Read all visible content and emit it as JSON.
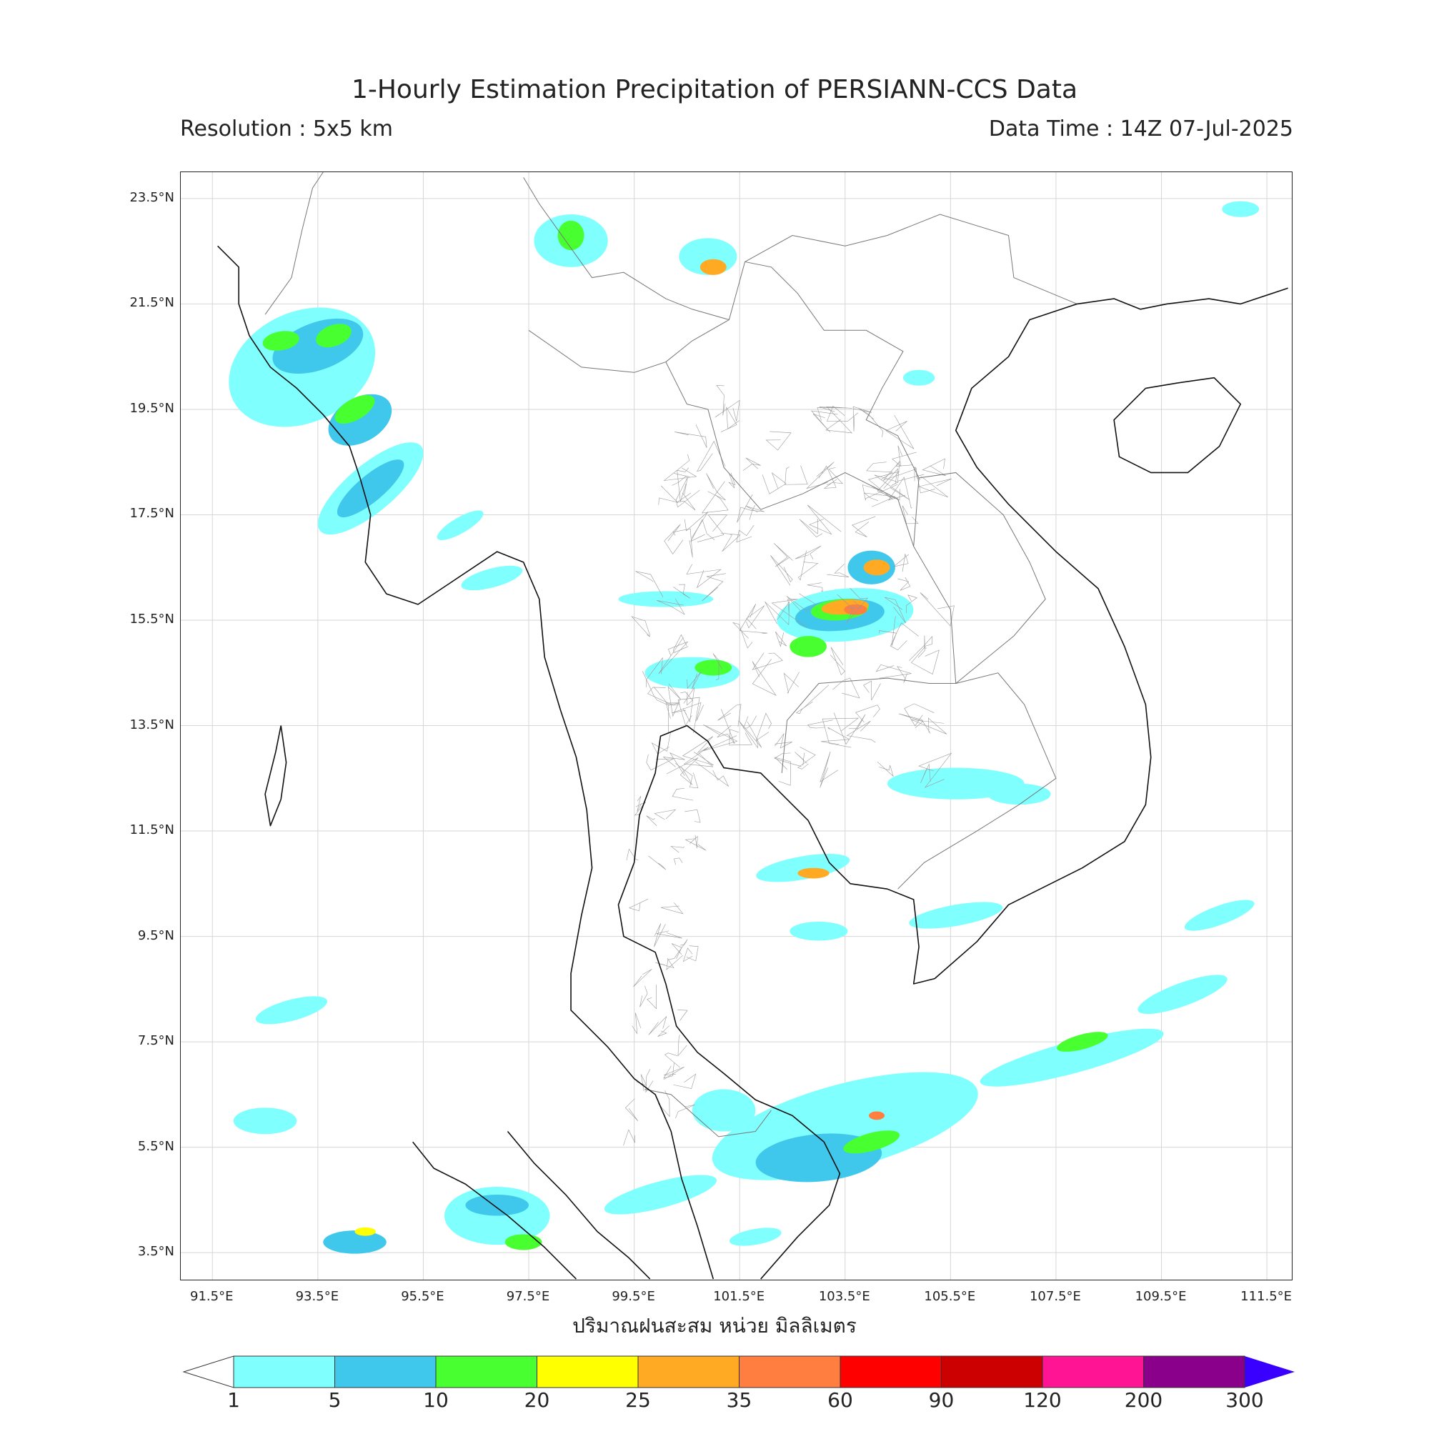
{
  "header": {
    "title": "1-Hourly Estimation Precipitation of PERSIANN-CCS Data",
    "resolution": "Resolution : 5x5 km",
    "data_time": "Data Time : 14Z 07-Jul-2025"
  },
  "axes": {
    "lat_labels": [
      "23.5°N",
      "21.5°N",
      "19.5°N",
      "17.5°N",
      "15.5°N",
      "13.5°N",
      "11.5°N",
      "9.5°N",
      "7.5°N",
      "5.5°N",
      "3.5°N"
    ],
    "lon_labels": [
      "91.5°E",
      "93.5°E",
      "95.5°E",
      "97.5°E",
      "99.5°E",
      "101.5°E",
      "103.5°E",
      "105.5°E",
      "107.5°E",
      "109.5°E",
      "111.5°E"
    ],
    "lat_values": [
      23.5,
      21.5,
      19.5,
      17.5,
      15.5,
      13.5,
      11.5,
      9.5,
      7.5,
      5.5,
      3.5
    ],
    "lon_values": [
      91.5,
      93.5,
      95.5,
      97.5,
      99.5,
      101.5,
      103.5,
      105.5,
      107.5,
      109.5,
      111.5
    ],
    "lat_range": [
      2.96,
      24.0
    ],
    "lon_range": [
      90.9,
      112.0
    ],
    "grid": true
  },
  "unit_label": "ปริมาณฝนสะสม หน่วย มิลลิเมตร",
  "colorbar": {
    "ticks": [
      "1",
      "5",
      "10",
      "20",
      "25",
      "35",
      "60",
      "90",
      "120",
      "200",
      "300"
    ],
    "colors": [
      "#80ffff",
      "#40c8ec",
      "#48ff30",
      "#ffff00",
      "#ffaa22",
      "#ff7e40",
      "#ff0000",
      "#cc0000",
      "#ff1493",
      "#8b008b",
      "#3a00ff"
    ],
    "under_color": "#ffffff"
  },
  "map": {
    "rain_areas": [
      {
        "lon": 93.2,
        "lat": 20.3,
        "rx": 1.45,
        "ry": 1.05,
        "rot": -25,
        "level": 0
      },
      {
        "lon": 93.5,
        "lat": 20.7,
        "rx": 0.9,
        "ry": 0.45,
        "rot": -20,
        "level": 1
      },
      {
        "lon": 93.8,
        "lat": 20.9,
        "rx": 0.35,
        "ry": 0.2,
        "rot": -20,
        "level": 2
      },
      {
        "lon": 92.8,
        "lat": 20.8,
        "rx": 0.35,
        "ry": 0.18,
        "rot": -10,
        "level": 2
      },
      {
        "lon": 94.3,
        "lat": 19.3,
        "rx": 0.65,
        "ry": 0.42,
        "rot": -30,
        "level": 1
      },
      {
        "lon": 94.2,
        "lat": 19.5,
        "rx": 0.42,
        "ry": 0.2,
        "rot": -30,
        "level": 2
      },
      {
        "lon": 94.5,
        "lat": 18.0,
        "rx": 1.25,
        "ry": 0.45,
        "rot": -40,
        "level": 0
      },
      {
        "lon": 94.5,
        "lat": 18.0,
        "rx": 0.8,
        "ry": 0.25,
        "rot": -40,
        "level": 1
      },
      {
        "lon": 98.3,
        "lat": 22.7,
        "rx": 0.7,
        "ry": 0.5,
        "rot": 0,
        "level": 0
      },
      {
        "lon": 98.3,
        "lat": 22.8,
        "rx": 0.25,
        "ry": 0.28,
        "rot": 0,
        "level": 2
      },
      {
        "lon": 100.9,
        "lat": 22.4,
        "rx": 0.55,
        "ry": 0.35,
        "rot": 0,
        "level": 0
      },
      {
        "lon": 101.0,
        "lat": 22.2,
        "rx": 0.25,
        "ry": 0.15,
        "rot": 0,
        "level": 4
      },
      {
        "lon": 103.5,
        "lat": 15.6,
        "rx": 1.3,
        "ry": 0.5,
        "rot": -5,
        "level": 0
      },
      {
        "lon": 103.4,
        "lat": 15.6,
        "rx": 0.85,
        "ry": 0.3,
        "rot": -5,
        "level": 1
      },
      {
        "lon": 103.4,
        "lat": 15.7,
        "rx": 0.55,
        "ry": 0.2,
        "rot": -5,
        "level": 2
      },
      {
        "lon": 103.5,
        "lat": 15.75,
        "rx": 0.45,
        "ry": 0.14,
        "rot": -5,
        "level": 4
      },
      {
        "lon": 103.7,
        "lat": 15.7,
        "rx": 0.22,
        "ry": 0.1,
        "rot": 0,
        "level": 5
      },
      {
        "lon": 102.8,
        "lat": 15.0,
        "rx": 0.35,
        "ry": 0.2,
        "rot": 0,
        "level": 2
      },
      {
        "lon": 104.0,
        "lat": 16.5,
        "rx": 0.45,
        "ry": 0.32,
        "rot": 0,
        "level": 1
      },
      {
        "lon": 104.1,
        "lat": 16.5,
        "rx": 0.25,
        "ry": 0.15,
        "rot": 0,
        "level": 4
      },
      {
        "lon": 100.6,
        "lat": 14.5,
        "rx": 0.9,
        "ry": 0.3,
        "rot": 0,
        "level": 0
      },
      {
        "lon": 101.0,
        "lat": 14.6,
        "rx": 0.35,
        "ry": 0.15,
        "rot": 0,
        "level": 2
      },
      {
        "lon": 100.1,
        "lat": 15.9,
        "rx": 0.9,
        "ry": 0.15,
        "rot": 0,
        "level": 0
      },
      {
        "lon": 105.6,
        "lat": 12.4,
        "rx": 1.3,
        "ry": 0.3,
        "rot": 0,
        "level": 0
      },
      {
        "lon": 106.8,
        "lat": 12.2,
        "rx": 0.6,
        "ry": 0.2,
        "rot": 0,
        "level": 0
      },
      {
        "lon": 105.6,
        "lat": 9.9,
        "rx": 0.9,
        "ry": 0.2,
        "rot": -10,
        "level": 0
      },
      {
        "lon": 102.7,
        "lat": 10.8,
        "rx": 0.9,
        "ry": 0.22,
        "rot": -10,
        "level": 0
      },
      {
        "lon": 102.9,
        "lat": 10.7,
        "rx": 0.3,
        "ry": 0.1,
        "rot": 0,
        "level": 4
      },
      {
        "lon": 103.0,
        "lat": 9.6,
        "rx": 0.55,
        "ry": 0.18,
        "rot": 0,
        "level": 0
      },
      {
        "lon": 103.5,
        "lat": 5.9,
        "rx": 2.6,
        "ry": 0.8,
        "rot": -15,
        "level": 0
      },
      {
        "lon": 103.0,
        "lat": 5.3,
        "rx": 1.2,
        "ry": 0.45,
        "rot": -5,
        "level": 1
      },
      {
        "lon": 104.0,
        "lat": 5.6,
        "rx": 0.55,
        "ry": 0.17,
        "rot": -15,
        "level": 2
      },
      {
        "lon": 104.1,
        "lat": 6.1,
        "rx": 0.15,
        "ry": 0.08,
        "rot": 0,
        "level": 5
      },
      {
        "lon": 107.8,
        "lat": 7.2,
        "rx": 1.8,
        "ry": 0.3,
        "rot": -15,
        "level": 0
      },
      {
        "lon": 108.0,
        "lat": 7.5,
        "rx": 0.5,
        "ry": 0.14,
        "rot": -15,
        "level": 2
      },
      {
        "lon": 109.9,
        "lat": 8.4,
        "rx": 0.9,
        "ry": 0.22,
        "rot": -20,
        "level": 0
      },
      {
        "lon": 110.6,
        "lat": 9.9,
        "rx": 0.7,
        "ry": 0.18,
        "rot": -20,
        "level": 0
      },
      {
        "lon": 100.0,
        "lat": 4.6,
        "rx": 1.1,
        "ry": 0.25,
        "rot": -15,
        "level": 0
      },
      {
        "lon": 96.9,
        "lat": 4.2,
        "rx": 1.0,
        "ry": 0.55,
        "rot": 0,
        "level": 0
      },
      {
        "lon": 96.9,
        "lat": 4.4,
        "rx": 0.6,
        "ry": 0.2,
        "rot": 0,
        "level": 1
      },
      {
        "lon": 97.4,
        "lat": 3.7,
        "rx": 0.35,
        "ry": 0.15,
        "rot": 0,
        "level": 2
      },
      {
        "lon": 94.2,
        "lat": 3.7,
        "rx": 0.6,
        "ry": 0.22,
        "rot": 0,
        "level": 1
      },
      {
        "lon": 94.4,
        "lat": 3.9,
        "rx": 0.2,
        "ry": 0.08,
        "rot": 0,
        "level": 3
      },
      {
        "lon": 93.0,
        "lat": 8.1,
        "rx": 0.7,
        "ry": 0.2,
        "rot": -15,
        "level": 0
      },
      {
        "lon": 92.5,
        "lat": 6.0,
        "rx": 0.6,
        "ry": 0.25,
        "rot": 0,
        "level": 0
      },
      {
        "lon": 96.2,
        "lat": 17.3,
        "rx": 0.5,
        "ry": 0.15,
        "rot": -30,
        "level": 0
      },
      {
        "lon": 96.8,
        "lat": 16.3,
        "rx": 0.6,
        "ry": 0.18,
        "rot": -15,
        "level": 0
      },
      {
        "lon": 111.0,
        "lat": 23.3,
        "rx": 0.35,
        "ry": 0.15,
        "rot": 0,
        "level": 0
      },
      {
        "lon": 104.9,
        "lat": 20.1,
        "rx": 0.3,
        "ry": 0.15,
        "rot": 0,
        "level": 0
      },
      {
        "lon": 101.2,
        "lat": 6.2,
        "rx": 0.6,
        "ry": 0.4,
        "rot": 0,
        "level": 0
      },
      {
        "lon": 101.8,
        "lat": 3.8,
        "rx": 0.5,
        "ry": 0.15,
        "rot": -10,
        "level": 0
      }
    ],
    "coastlines": [
      [
        [
          91.6,
          22.6
        ],
        [
          92.0,
          22.2
        ],
        [
          92.0,
          21.5
        ],
        [
          92.2,
          20.9
        ],
        [
          92.6,
          20.3
        ],
        [
          93.1,
          19.9
        ],
        [
          93.6,
          19.4
        ],
        [
          94.1,
          18.8
        ],
        [
          94.3,
          18.2
        ],
        [
          94.5,
          17.5
        ],
        [
          94.4,
          16.6
        ],
        [
          94.8,
          16.0
        ],
        [
          95.4,
          15.8
        ],
        [
          96.0,
          16.2
        ],
        [
          96.9,
          16.8
        ],
        [
          97.4,
          16.6
        ],
        [
          97.7,
          15.9
        ],
        [
          97.8,
          14.8
        ],
        [
          98.1,
          13.8
        ],
        [
          98.4,
          12.9
        ],
        [
          98.6,
          11.9
        ],
        [
          98.7,
          10.8
        ],
        [
          98.5,
          9.9
        ],
        [
          98.3,
          8.8
        ],
        [
          98.3,
          8.1
        ],
        [
          98.6,
          7.8
        ],
        [
          99.0,
          7.4
        ],
        [
          99.5,
          6.8
        ],
        [
          99.9,
          6.5
        ],
        [
          100.2,
          5.8
        ],
        [
          100.4,
          4.9
        ],
        [
          100.7,
          4.0
        ],
        [
          101.0,
          3.0
        ]
      ],
      [
        [
          101.9,
          3.0
        ],
        [
          102.6,
          3.8
        ],
        [
          103.2,
          4.4
        ],
        [
          103.4,
          5.0
        ],
        [
          103.1,
          5.6
        ],
        [
          102.5,
          6.1
        ],
        [
          101.8,
          6.4
        ],
        [
          101.2,
          6.9
        ],
        [
          100.7,
          7.3
        ],
        [
          100.3,
          7.8
        ],
        [
          100.1,
          8.6
        ],
        [
          99.9,
          9.2
        ],
        [
          99.3,
          9.5
        ],
        [
          99.2,
          10.1
        ],
        [
          99.5,
          10.9
        ],
        [
          99.6,
          11.8
        ],
        [
          99.9,
          12.6
        ],
        [
          100.0,
          13.3
        ],
        [
          100.5,
          13.5
        ],
        [
          100.9,
          13.2
        ],
        [
          101.2,
          12.7
        ],
        [
          101.9,
          12.6
        ],
        [
          102.4,
          12.1
        ],
        [
          102.8,
          11.7
        ],
        [
          103.2,
          10.9
        ],
        [
          103.6,
          10.5
        ],
        [
          104.3,
          10.4
        ],
        [
          104.8,
          10.2
        ],
        [
          104.9,
          9.3
        ],
        [
          104.8,
          8.6
        ],
        [
          105.2,
          8.7
        ],
        [
          106.0,
          9.4
        ],
        [
          106.6,
          10.1
        ],
        [
          107.2,
          10.4
        ],
        [
          108.0,
          10.8
        ],
        [
          108.8,
          11.3
        ],
        [
          109.2,
          12.0
        ],
        [
          109.3,
          12.9
        ],
        [
          109.2,
          13.9
        ],
        [
          108.8,
          15.0
        ],
        [
          108.3,
          16.1
        ],
        [
          107.5,
          16.8
        ],
        [
          106.6,
          17.7
        ],
        [
          106.0,
          18.4
        ],
        [
          105.6,
          19.1
        ],
        [
          105.9,
          19.9
        ],
        [
          106.6,
          20.5
        ],
        [
          107.0,
          21.2
        ],
        [
          107.9,
          21.5
        ],
        [
          108.6,
          21.6
        ],
        [
          109.1,
          21.4
        ],
        [
          109.6,
          21.5
        ],
        [
          110.4,
          21.6
        ],
        [
          111.0,
          21.5
        ],
        [
          111.9,
          21.8
        ]
      ],
      [
        [
          97.1,
          5.8
        ],
        [
          97.6,
          5.2
        ],
        [
          98.2,
          4.6
        ],
        [
          98.8,
          3.9
        ],
        [
          99.4,
          3.4
        ],
        [
          99.8,
          3.0
        ]
      ],
      [
        [
          95.3,
          5.6
        ],
        [
          95.7,
          5.1
        ],
        [
          96.3,
          4.8
        ],
        [
          97.1,
          4.2
        ],
        [
          97.8,
          3.6
        ],
        [
          98.4,
          3.0
        ]
      ],
      [
        [
          109.2,
          19.9
        ],
        [
          109.8,
          20.0
        ],
        [
          110.5,
          20.1
        ],
        [
          111.0,
          19.6
        ],
        [
          110.6,
          18.8
        ],
        [
          110.0,
          18.3
        ],
        [
          109.3,
          18.3
        ],
        [
          108.7,
          18.6
        ],
        [
          108.6,
          19.3
        ],
        [
          109.2,
          19.9
        ]
      ],
      [
        [
          92.8,
          13.5
        ],
        [
          92.9,
          12.8
        ],
        [
          92.8,
          12.1
        ],
        [
          92.6,
          11.6
        ],
        [
          92.5,
          12.2
        ],
        [
          92.7,
          13.0
        ],
        [
          92.8,
          13.5
        ]
      ]
    ],
    "borders": [
      [
        [
          97.5,
          21.0
        ],
        [
          98.5,
          20.3
        ],
        [
          99.5,
          20.2
        ],
        [
          100.1,
          20.4
        ],
        [
          100.5,
          19.6
        ],
        [
          100.9,
          19.5
        ],
        [
          101.2,
          18.4
        ],
        [
          101.9,
          17.6
        ],
        [
          102.7,
          17.9
        ],
        [
          103.5,
          18.3
        ],
        [
          104.5,
          17.8
        ],
        [
          104.8,
          16.9
        ],
        [
          105.5,
          15.7
        ],
        [
          105.6,
          14.3
        ],
        [
          105.1,
          14.3
        ],
        [
          104.3,
          14.4
        ],
        [
          103.0,
          14.3
        ],
        [
          102.4,
          13.6
        ],
        [
          102.3,
          12.6
        ]
      ],
      [
        [
          104.8,
          16.9
        ],
        [
          104.9,
          18.2
        ],
        [
          104.5,
          19.0
        ],
        [
          103.9,
          19.3
        ],
        [
          104.2,
          19.9
        ],
        [
          104.6,
          20.6
        ],
        [
          103.9,
          21.0
        ],
        [
          103.1,
          21.0
        ],
        [
          102.6,
          21.7
        ],
        [
          102.1,
          22.2
        ],
        [
          101.6,
          22.3
        ],
        [
          101.3,
          21.2
        ],
        [
          100.6,
          20.8
        ],
        [
          100.1,
          20.4
        ]
      ],
      [
        [
          105.6,
          14.3
        ],
        [
          106.4,
          14.5
        ],
        [
          106.9,
          13.9
        ],
        [
          107.5,
          12.5
        ],
        [
          106.8,
          12.0
        ],
        [
          106.0,
          11.5
        ],
        [
          105.0,
          10.9
        ],
        [
          104.5,
          10.4
        ]
      ],
      [
        [
          105.6,
          14.3
        ],
        [
          106.7,
          15.2
        ],
        [
          107.3,
          15.9
        ],
        [
          107.0,
          16.6
        ],
        [
          106.5,
          17.5
        ],
        [
          105.6,
          18.3
        ],
        [
          104.9,
          18.2
        ]
      ],
      [
        [
          101.6,
          22.3
        ],
        [
          102.5,
          22.8
        ],
        [
          103.5,
          22.6
        ],
        [
          104.3,
          22.8
        ],
        [
          105.3,
          23.2
        ],
        [
          106.6,
          22.8
        ],
        [
          106.7,
          22.0
        ],
        [
          107.9,
          21.5
        ]
      ],
      [
        [
          92.5,
          21.3
        ],
        [
          93.0,
          22.0
        ],
        [
          93.2,
          22.9
        ],
        [
          93.4,
          23.7
        ],
        [
          93.6,
          24.0
        ]
      ],
      [
        [
          97.4,
          23.9
        ],
        [
          97.7,
          23.4
        ],
        [
          98.7,
          22.0
        ],
        [
          99.3,
          22.1
        ],
        [
          100.1,
          21.6
        ],
        [
          100.6,
          21.4
        ],
        [
          101.3,
          21.2
        ]
      ],
      [
        [
          99.7,
          6.6
        ],
        [
          100.2,
          6.5
        ],
        [
          101.1,
          5.7
        ],
        [
          101.8,
          5.8
        ],
        [
          102.1,
          6.2
        ]
      ]
    ],
    "provinces_box": {
      "lon_min": 97.5,
      "lon_max": 105.6,
      "lat_min": 5.6,
      "lat_max": 20.4
    }
  }
}
